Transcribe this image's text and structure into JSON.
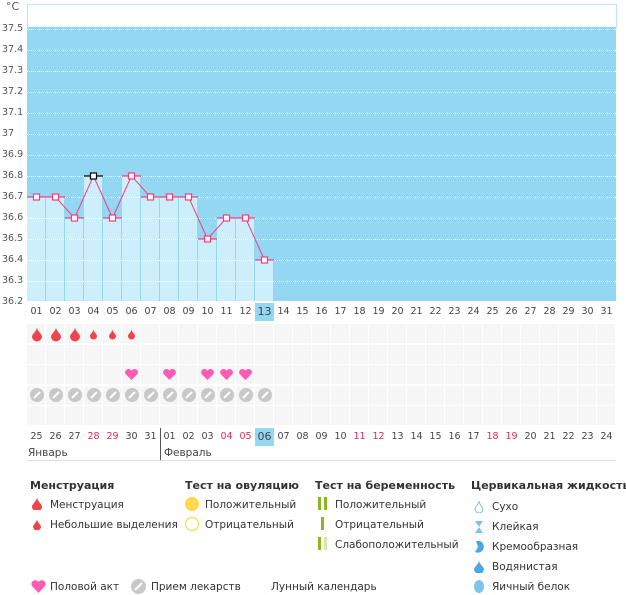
{
  "chart_data": {
    "type": "bar",
    "unit": "°C",
    "ylim": [
      36.2,
      37.5
    ],
    "yticks": [
      "37.5",
      "37.4",
      "37.3",
      "37.2",
      "37.1",
      "37",
      "36.9",
      "36.8",
      "36.7",
      "36.6",
      "36.5",
      "36.4",
      "36.3",
      "36.2"
    ],
    "days": [
      "01",
      "02",
      "03",
      "04",
      "05",
      "06",
      "07",
      "08",
      "09",
      "10",
      "11",
      "12",
      "13",
      "14",
      "15",
      "16",
      "17",
      "18",
      "19",
      "20",
      "21",
      "22",
      "23",
      "24",
      "25",
      "26",
      "27",
      "28",
      "29",
      "30",
      "31"
    ],
    "current_day_index": 12,
    "temperatures": [
      36.7,
      36.7,
      36.6,
      36.8,
      36.6,
      36.8,
      36.7,
      36.7,
      36.7,
      36.5,
      36.6,
      36.6,
      36.4
    ],
    "selected_point_index": 3,
    "moon_day_index": 20,
    "menstruation": [
      "heavy",
      "heavy",
      "heavy",
      "light",
      "light",
      "light"
    ],
    "intercourse_indices": [
      5,
      7,
      9,
      10,
      11
    ],
    "medication_indices": [
      0,
      1,
      2,
      3,
      4,
      5,
      6,
      7,
      8,
      9,
      10,
      11,
      12
    ],
    "calendar_dates": [
      "25",
      "26",
      "27",
      "28",
      "29",
      "30",
      "31",
      "01",
      "02",
      "03",
      "04",
      "05",
      "06",
      "07",
      "08",
      "09",
      "10",
      "11",
      "12",
      "13",
      "14",
      "15",
      "16",
      "17",
      "18",
      "19",
      "20",
      "21",
      "22",
      "23",
      "24"
    ],
    "weekend_indices": [
      3,
      4,
      10,
      11,
      17,
      18,
      24,
      25
    ],
    "months": [
      "Январь",
      "Февраль"
    ],
    "colors": {
      "plot_bg": "#93d7f3",
      "bar": "#cdeefb",
      "line": "#ff3a7a",
      "weekend": "#e8275a"
    }
  },
  "legend": {
    "menstruation": {
      "title": "Менструация",
      "items": [
        "Менструация",
        "Небольшие выделения"
      ]
    },
    "ovulation": {
      "title": "Тест на овуляцию",
      "items": [
        "Положительный",
        "Отрицательный"
      ]
    },
    "pregnancy": {
      "title": "Тест на беременность",
      "items": [
        "Положительный",
        "Отрицательный",
        "Слабоположительный"
      ]
    },
    "cervical": {
      "title": "Цервикальная жидкость",
      "items": [
        "Сухо",
        "Клейкая",
        "Кремообразная",
        "Водянистая",
        "Яичный белок"
      ]
    },
    "other": [
      "Половой акт",
      "Прием лекарств",
      "Лунный календарь"
    ]
  }
}
